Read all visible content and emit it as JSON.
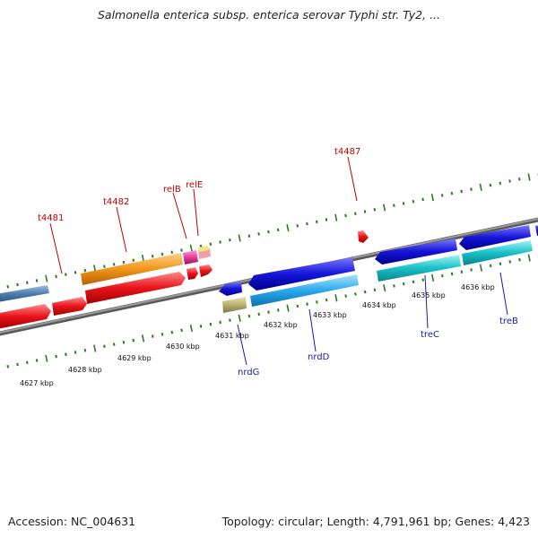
{
  "title": "Salmonella enterica subsp. enterica serovar Typhi str. Ty2, ...",
  "footer": {
    "accession": "Accession: NC_004631",
    "summary": "Topology: circular; Length: 4,791,961 bp; Genes: 4,423"
  },
  "kbp_labels": [
    "4627 kbp",
    "4628 kbp",
    "4629 kbp",
    "4630 kbp",
    "4631 kbp",
    "4632 kbp",
    "4633 kbp",
    "4634 kbp",
    "4635 kbp",
    "4636 kbp"
  ],
  "gene_labels": {
    "t4481": "t4481",
    "t4482": "t4482",
    "relB": "relB",
    "relE": "relE",
    "t4487": "t4487",
    "nrdG": "nrdG",
    "nrdD": "nrdD",
    "treC": "treC",
    "treB": "treB"
  },
  "colors": {
    "backbone": "#888888",
    "tick": "#2a7a1e",
    "red_feature": "#e8141a",
    "orange_feature": "#f0961a",
    "steel_feature": "#4d7fae",
    "blue_feature": "#1414d8",
    "skyblue_feature": "#2aa8ec",
    "cyan_feature": "#18c0c8",
    "olive_feature": "#b8b070",
    "magenta_feature": "#e83c9c"
  }
}
